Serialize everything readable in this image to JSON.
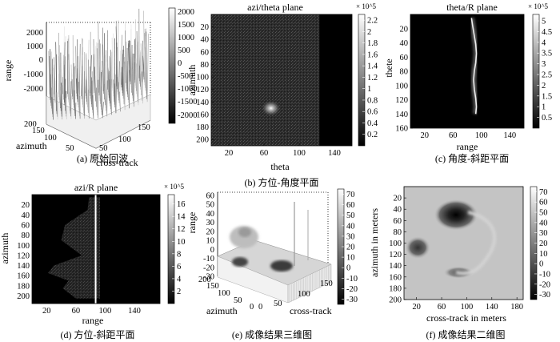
{
  "chart_data": [
    {
      "id": "a",
      "type": "surface",
      "caption": "(a) 原始回波",
      "title": "",
      "xlabel": "cross-track",
      "ylabel": "azimuth",
      "zlabel": "range",
      "x_ticks": [
        "50",
        "100",
        "150"
      ],
      "y_ticks": [
        "50",
        "100",
        "150",
        "200"
      ],
      "z_ticks": [
        "-2000",
        "-1000",
        "0",
        "1000",
        "2000"
      ],
      "colorbar": {
        "min": -2000,
        "max": 2000,
        "ticks": [
          "2000",
          "1500",
          "1000",
          "500",
          "0",
          "-500",
          "-1000",
          "-1500",
          "-2000"
        ]
      },
      "colormap": "gray"
    },
    {
      "id": "b",
      "type": "heatmap",
      "caption": "(b) 方位-角度平面",
      "title": "azi/theta plane",
      "xlabel": "theta",
      "ylabel": "azimuth",
      "xlim": [
        0,
        160
      ],
      "ylim": [
        0,
        210
      ],
      "x_ticks": [
        "20",
        "60",
        "100",
        "140"
      ],
      "y_ticks": [
        "20",
        "40",
        "60",
        "80",
        "100",
        "120",
        "140",
        "160",
        "180",
        "200"
      ],
      "colorbar": {
        "min": 0,
        "max": 2.3,
        "exponent": "× 10^5",
        "ticks": [
          "2.2",
          "2",
          "1.8",
          "1.6",
          "1.4",
          "1.2",
          "1",
          "0.8",
          "0.6",
          "0.4",
          "0.2"
        ]
      },
      "features": {
        "noise_band_theta": [
          0,
          123
        ],
        "bright_spot": {
          "theta": 68,
          "azimuth": 150
        }
      }
    },
    {
      "id": "c",
      "type": "heatmap",
      "caption": "(c) 角度-斜距平面",
      "title": "theta/R plane",
      "xlabel": "range",
      "ylabel": "thete",
      "xlim": [
        0,
        160
      ],
      "ylim": [
        0,
        160
      ],
      "x_ticks": [
        "20",
        "60",
        "100",
        "140"
      ],
      "y_ticks": [
        "20",
        "40",
        "60",
        "80",
        "100",
        "120",
        "140",
        "160"
      ],
      "colorbar": {
        "min": 0,
        "max": 5.3,
        "exponent": "× 10^5",
        "ticks": [
          "5",
          "4.5",
          "4",
          "3.5",
          "3",
          "2.5",
          "2",
          "1.5",
          "1",
          "0.5"
        ]
      },
      "curve": {
        "x": [
          86,
          88,
          90,
          92,
          93,
          92,
          90,
          89,
          90,
          92,
          93,
          92
        ],
        "y": [
          5,
          18,
          30,
          42,
          55,
          68,
          80,
          92,
          105,
          118,
          130,
          140
        ]
      }
    },
    {
      "id": "d",
      "type": "heatmap",
      "caption": "(d) 方位-斜距平面",
      "title": "azi/R plane",
      "xlabel": "range",
      "ylabel": "azimuth",
      "xlim": [
        0,
        175
      ],
      "ylim": [
        0,
        215
      ],
      "x_ticks": [
        "20",
        "60",
        "100",
        "140"
      ],
      "y_ticks": [
        "20",
        "40",
        "60",
        "80",
        "100",
        "120",
        "140",
        "160",
        "180",
        "200"
      ],
      "colorbar": {
        "min": 0,
        "max": 17.5,
        "exponent": "× 10^5",
        "ticks": [
          "16",
          "14",
          "12",
          "10",
          "8",
          "6",
          "4",
          "2"
        ]
      },
      "line_range": 87,
      "envelope_left": {
        "azimuth": [
          5,
          30,
          60,
          90,
          120,
          140,
          155,
          170,
          185,
          205
        ],
        "range": [
          78,
          76,
          45,
          40,
          68,
          30,
          22,
          50,
          42,
          60
        ]
      }
    },
    {
      "id": "e",
      "type": "surface",
      "caption": "(e) 成像结果三维图",
      "title": "",
      "xlabel": "cross-track",
      "ylabel": "azimuth",
      "zlabel": "range",
      "x_ticks": [
        "0",
        "50",
        "100",
        "150"
      ],
      "y_ticks": [
        "0",
        "50",
        "100",
        "150",
        "200"
      ],
      "z_ticks": [
        "-30",
        "-20",
        "-10",
        "0",
        "10",
        "20",
        "30",
        "40",
        "50",
        "60"
      ],
      "colorbar": {
        "min": -35,
        "max": 75,
        "ticks": [
          "70",
          "60",
          "50",
          "40",
          "30",
          "20",
          "10",
          "0",
          "-10",
          "-20",
          "-30"
        ]
      },
      "colormap": "gray"
    },
    {
      "id": "f",
      "type": "heatmap",
      "caption": "(f) 成像结果二维图",
      "title": "",
      "xlabel": "cross-track in meters",
      "ylabel": "azimuth in meters",
      "xlim": [
        0,
        190
      ],
      "ylim": [
        0,
        200
      ],
      "x_ticks": [
        "20",
        "60",
        "100",
        "140",
        "180"
      ],
      "y_ticks": [
        "20",
        "40",
        "60",
        "80",
        "100",
        "120",
        "140",
        "160",
        "180",
        "200"
      ],
      "colorbar": {
        "min": -35,
        "max": 75,
        "ticks": [
          "70",
          "60",
          "50",
          "40",
          "30",
          "20",
          "10",
          "0",
          "-10",
          "-20",
          "-30"
        ]
      },
      "blobs": [
        {
          "x": 83,
          "y": 50,
          "rx": 28,
          "ry": 22,
          "level": 0.05
        },
        {
          "x": 22,
          "y": 108,
          "rx": 16,
          "ry": 16,
          "level": 0.3
        },
        {
          "x": 87,
          "y": 152,
          "rx": 20,
          "ry": 9,
          "level": 0.45
        }
      ]
    }
  ]
}
